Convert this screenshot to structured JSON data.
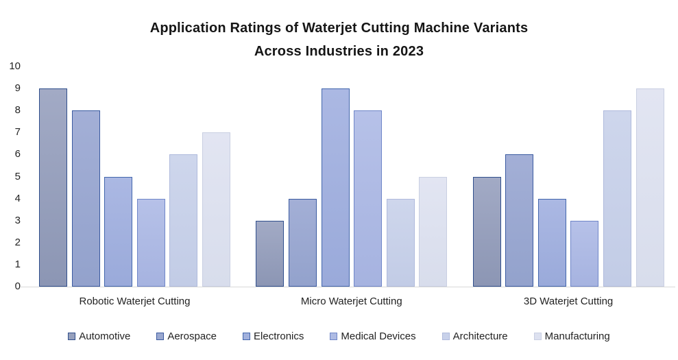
{
  "title": {
    "line1": "Application Ratings of Waterjet Cutting Machine Variants",
    "line2": "Across Industries in 2023"
  },
  "chart_data": {
    "type": "bar",
    "title": "Application Ratings of Waterjet Cutting Machine Variants Across Industries in 2023",
    "categories": [
      "Robotic Waterjet Cutting",
      "Micro Waterjet Cutting",
      "3D Waterjet Cutting"
    ],
    "series": [
      {
        "name": "Automotive",
        "values": [
          9,
          3,
          5
        ],
        "fill_top": "#A2AAC5",
        "fill_bottom": "#8C96B4",
        "border": "#2F4E8C",
        "swatch": "#96A0BC"
      },
      {
        "name": "Aerospace",
        "values": [
          8,
          4,
          6
        ],
        "fill_top": "#A3AFD6",
        "fill_bottom": "#93A2CC",
        "border": "#3A5AA0",
        "swatch": "#9AA8D0"
      },
      {
        "name": "Electronics",
        "values": [
          5,
          9,
          4
        ],
        "fill_top": "#ABB8E3",
        "fill_bottom": "#9AAADA",
        "border": "#4266AC",
        "swatch": "#A2B1DD"
      },
      {
        "name": "Medical Devices",
        "values": [
          4,
          8,
          3
        ],
        "fill_top": "#B6C1E8",
        "fill_bottom": "#A6B3E0",
        "border": "#6F86C8",
        "swatch": "#AEBBE4"
      },
      {
        "name": "Architecture",
        "values": [
          6,
          4,
          8
        ],
        "fill_top": "#CED6EC",
        "fill_bottom": "#C2CCE6",
        "border": "#AFBADC",
        "swatch": "#C8D1EA"
      },
      {
        "name": "Manufacturing",
        "values": [
          7,
          5,
          9
        ],
        "fill_top": "#E2E5F2",
        "fill_bottom": "#D8DDEC",
        "border": "#C9CFE2",
        "swatch": "#DDE1F0"
      }
    ],
    "xlabel": "",
    "ylabel": "",
    "ylim": [
      0,
      10
    ],
    "ytick_step": 1,
    "grid": false,
    "legend_position": "bottom",
    "axis_line_color": "#d9d9d9",
    "text_color": "#222222"
  }
}
